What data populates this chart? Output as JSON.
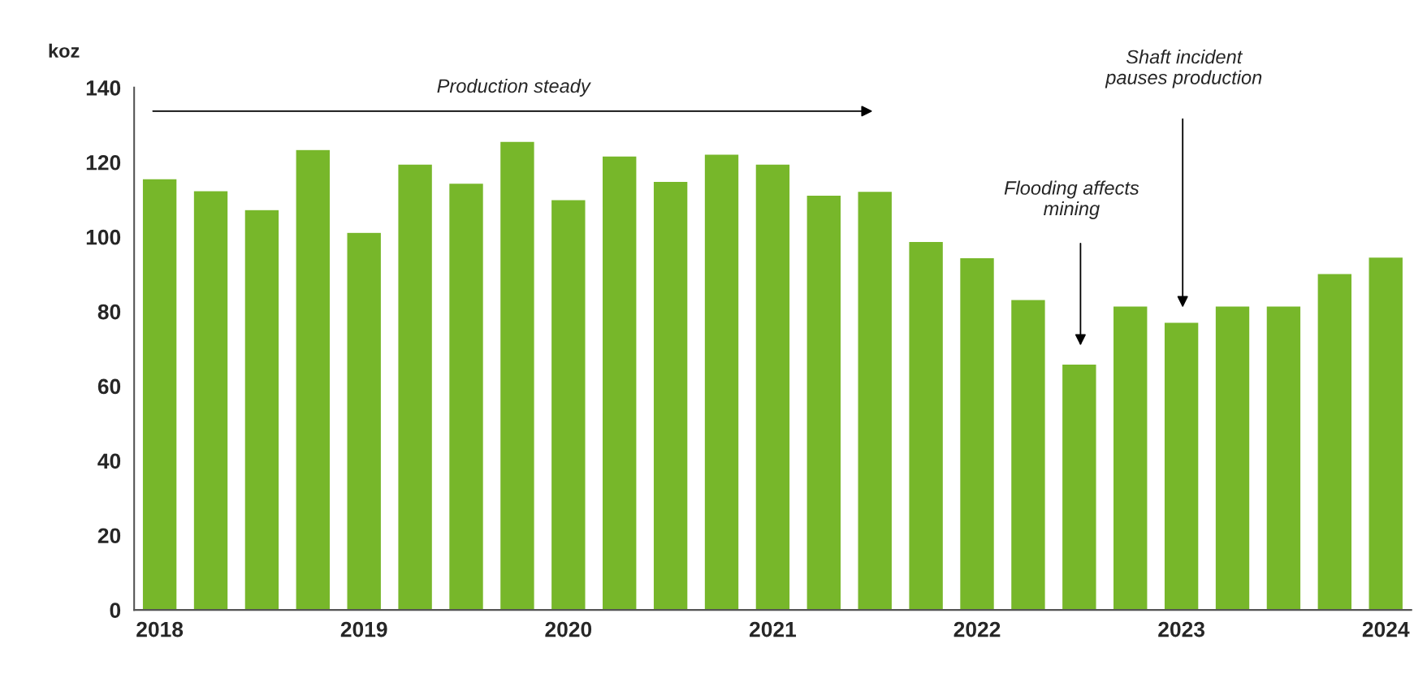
{
  "chart_data": {
    "type": "bar",
    "ylabel": "koz",
    "categories": [
      "2018",
      null,
      null,
      null,
      "2019",
      null,
      null,
      null,
      "2020",
      null,
      null,
      null,
      "2021",
      null,
      null,
      null,
      "2022",
      null,
      null,
      null,
      "2023",
      null,
      null,
      null,
      "2024"
    ],
    "values": [
      115.6,
      112.4,
      107.3,
      123.4,
      101.2,
      119.5,
      114.4,
      125.6,
      110,
      121.7,
      114.9,
      122.2,
      119.5,
      111.2,
      112.2,
      98.8,
      94.4,
      83.2,
      65.9,
      81.5,
      77.1,
      81.5,
      81.5,
      90.2,
      94.6
    ],
    "color": "#77b72a",
    "ylim": [
      0,
      140
    ],
    "yticks": [
      0,
      20,
      40,
      60,
      80,
      100,
      120,
      140
    ],
    "grid": false,
    "annotations": [
      "Production steady",
      "Flooding affects\nmining",
      "Shaft incident\npauses production"
    ]
  }
}
